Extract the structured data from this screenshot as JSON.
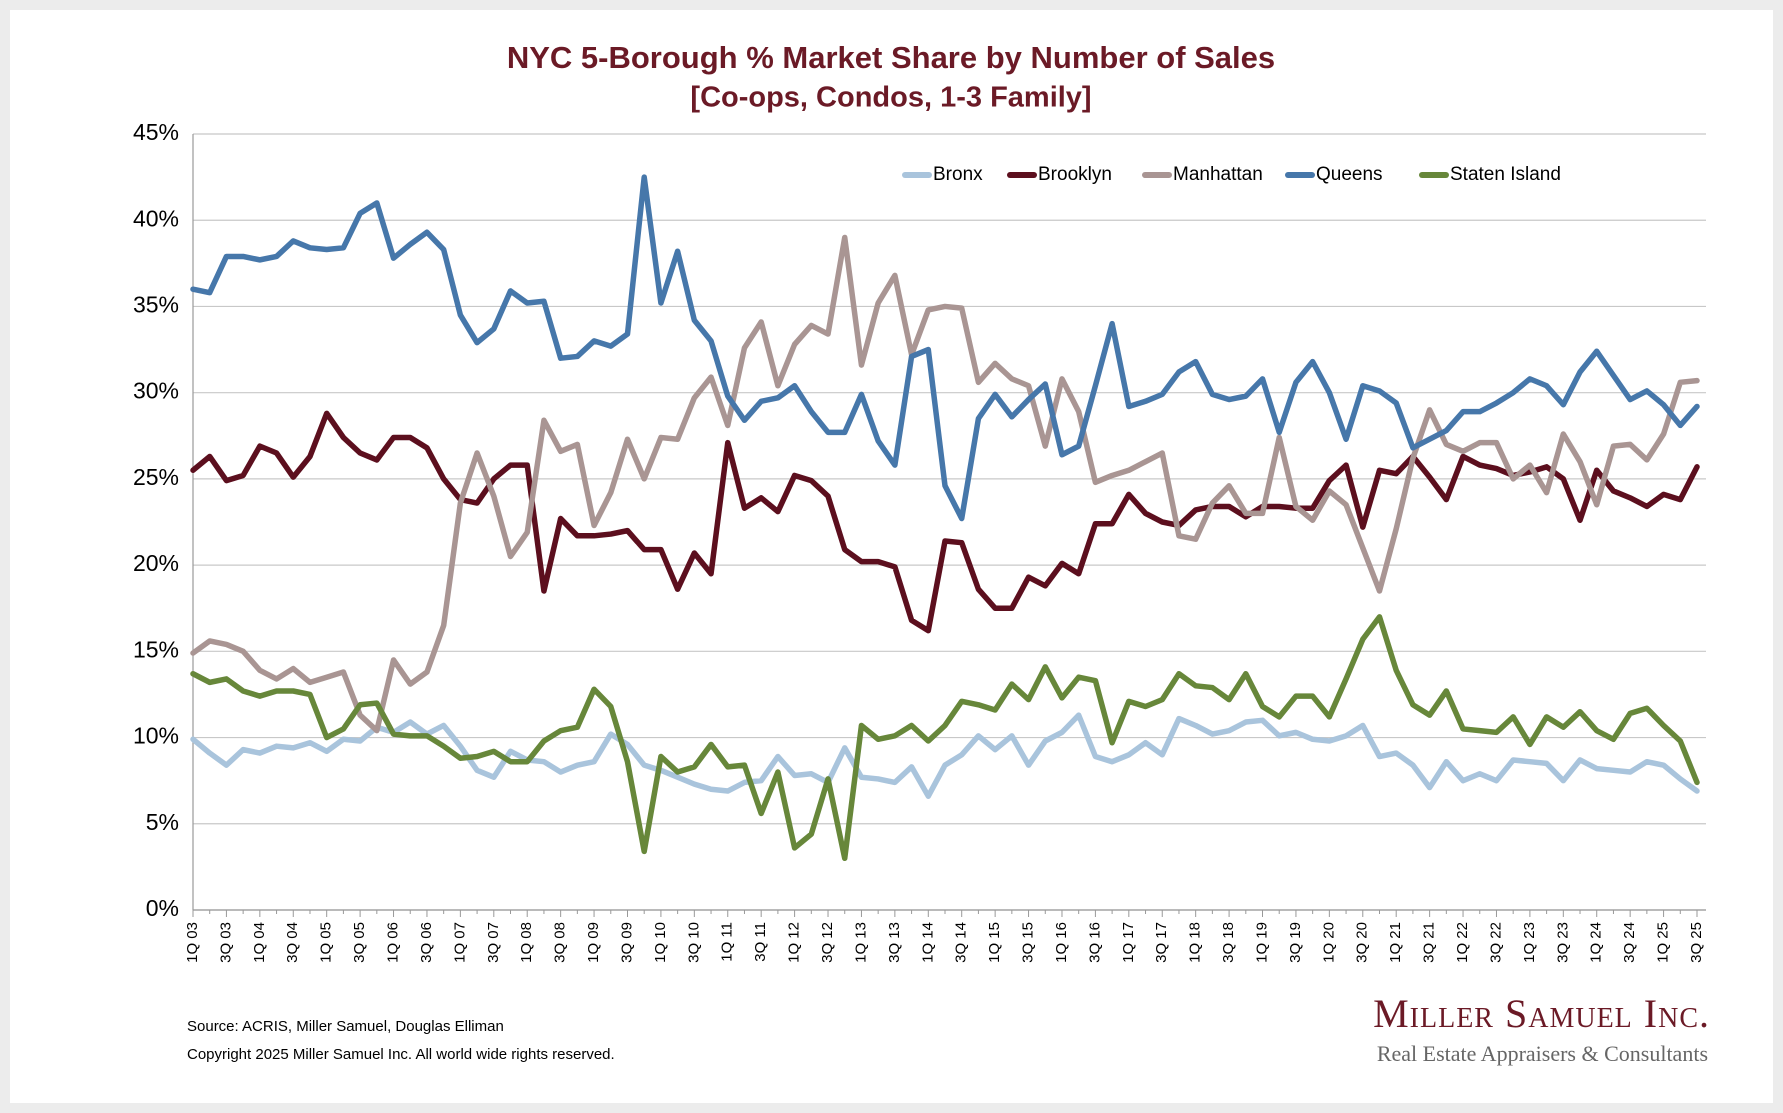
{
  "chart_data": {
    "type": "line",
    "title": "NYC 5-Borough % Market Share by Number of Sales",
    "subtitle": "[Co-ops, Condos, 1-3 Family]",
    "source": "Source: ACRIS, Miller Samuel, Douglas Elliman",
    "copyright": "Copyright 2025 Miller Samuel Inc.  All world wide rights reserved.",
    "logo": "Miller Samuel Inc.",
    "logo_tagline": "Real Estate Appraisers & Consultants",
    "categories": [
      "1Q 03",
      null,
      "3Q 03",
      null,
      "1Q 04",
      null,
      "3Q 04",
      null,
      "1Q 05",
      null,
      "3Q 05",
      null,
      "1Q 06",
      null,
      "3Q 06",
      null,
      "1Q 07",
      null,
      "3Q 07",
      null,
      "1Q 08",
      null,
      "3Q 08",
      null,
      "1Q 09",
      null,
      "3Q 09",
      null,
      "1Q 10",
      null,
      "3Q 10",
      null,
      "1Q 11",
      null,
      "3Q 11",
      null,
      "1Q 12",
      null,
      "3Q 12",
      null,
      "1Q 13",
      null,
      "3Q 13",
      null,
      "1Q 14",
      null,
      "3Q 14",
      null,
      "1Q 15",
      null,
      "3Q 15",
      null,
      "1Q 16",
      null,
      "3Q 16",
      null,
      "1Q 17",
      null,
      "3Q 17",
      null,
      "1Q 18",
      null,
      "3Q 18",
      null,
      "1Q 19",
      null,
      "3Q 19",
      null,
      "1Q 20",
      null,
      "3Q 20",
      null,
      "1Q 21",
      null,
      "3Q 21",
      null,
      "1Q 22",
      null,
      "3Q 22",
      null,
      "1Q 23",
      null,
      "3Q 23",
      null,
      "1Q 24",
      null,
      "3Q 24",
      null,
      "1Q 25",
      null,
      "3Q 25"
    ],
    "ylim": [
      0,
      45
    ],
    "yticks": [
      {
        "value": 0,
        "label": "0%"
      },
      {
        "value": 5,
        "label": "5%"
      },
      {
        "value": 10,
        "label": "10%"
      },
      {
        "value": 15,
        "label": "15%"
      },
      {
        "value": 20,
        "label": "20%"
      },
      {
        "value": 25,
        "label": "25%"
      },
      {
        "value": 30,
        "label": "30%"
      },
      {
        "value": 35,
        "label": "35%"
      },
      {
        "value": 40,
        "label": "40%"
      },
      {
        "value": 45,
        "label": "45%"
      }
    ],
    "grid": true,
    "legend": "top-right",
    "series": [
      {
        "name": "Bronx",
        "color": "#a9c4dc",
        "values": [
          9.9,
          9.1,
          8.4,
          9.3,
          9.1,
          9.5,
          9.4,
          9.7,
          9.2,
          9.9,
          9.8,
          10.6,
          10.3,
          10.9,
          10.2,
          10.7,
          9.5,
          8.1,
          7.7,
          9.2,
          8.7,
          8.6,
          8.0,
          8.4,
          8.6,
          10.2,
          9.6,
          8.4,
          8.1,
          7.7,
          7.3,
          7.0,
          6.9,
          7.4,
          7.5,
          8.9,
          7.8,
          7.9,
          7.4,
          9.4,
          7.7,
          7.6,
          7.4,
          8.3,
          6.6,
          8.4,
          9.0,
          10.1,
          9.3,
          10.1,
          8.4,
          9.8,
          10.3,
          11.3,
          8.9,
          8.6,
          9.0,
          9.7,
          9.0,
          11.1,
          10.7,
          10.2,
          10.4,
          10.9,
          11.0,
          10.1,
          10.3,
          9.9,
          9.8,
          10.1,
          10.7,
          8.9,
          9.1,
          8.4,
          7.1,
          8.6,
          7.5,
          7.9,
          7.5,
          8.7,
          8.6,
          8.5,
          7.5,
          8.7,
          8.2,
          8.1,
          8.0,
          8.6,
          8.4,
          7.6,
          6.9
        ]
      },
      {
        "name": "Brooklyn",
        "color": "#5c0f1e",
        "values": [
          25.5,
          26.3,
          24.9,
          25.2,
          26.9,
          26.5,
          25.1,
          26.3,
          28.8,
          27.4,
          26.5,
          26.1,
          27.4,
          27.4,
          26.8,
          25.0,
          23.8,
          23.6,
          25.0,
          25.8,
          25.8,
          18.5,
          22.7,
          21.7,
          21.7,
          21.8,
          22.0,
          20.9,
          20.9,
          18.6,
          20.7,
          19.5,
          27.1,
          23.3,
          23.9,
          23.1,
          25.2,
          24.9,
          24.0,
          20.9,
          20.2,
          20.2,
          19.9,
          16.8,
          16.2,
          21.4,
          21.3,
          18.6,
          17.5,
          17.5,
          19.3,
          18.8,
          20.1,
          19.5,
          22.4,
          22.4,
          24.1,
          23.0,
          22.5,
          22.3,
          23.2,
          23.4,
          23.4,
          22.8,
          23.4,
          23.4,
          23.3,
          23.3,
          24.9,
          25.8,
          22.2,
          25.5,
          25.3,
          26.3,
          25.1,
          23.8,
          26.3,
          25.8,
          25.6,
          25.2,
          25.4,
          25.7,
          25.0,
          22.6,
          25.5,
          24.3,
          23.9,
          23.4,
          24.1,
          23.8,
          25.7
        ]
      },
      {
        "name": "Manhattan",
        "color": "#a99593",
        "values": [
          14.9,
          15.6,
          15.4,
          15.0,
          13.9,
          13.4,
          14.0,
          13.2,
          13.5,
          13.8,
          11.3,
          10.4,
          14.5,
          13.1,
          13.8,
          16.5,
          23.6,
          26.5,
          24.0,
          20.5,
          21.9,
          28.4,
          26.6,
          27.0,
          22.3,
          24.2,
          27.3,
          25.0,
          27.4,
          27.3,
          29.7,
          30.9,
          28.1,
          32.6,
          34.1,
          30.4,
          32.8,
          33.9,
          33.4,
          39.0,
          31.6,
          35.2,
          36.8,
          32.2,
          34.8,
          35.0,
          34.9,
          30.6,
          31.7,
          30.8,
          30.4,
          26.9,
          30.8,
          28.9,
          24.8,
          25.2,
          25.5,
          26.0,
          26.5,
          21.7,
          21.5,
          23.6,
          24.6,
          23.0,
          23.0,
          27.4,
          23.4,
          22.6,
          24.3,
          23.5,
          21.0,
          18.5,
          22.1,
          26.2,
          29.0,
          27.0,
          26.6,
          27.1,
          27.1,
          25.0,
          25.8,
          24.2,
          27.6,
          26.0,
          23.5,
          26.9,
          27.0,
          26.1,
          27.6,
          30.6,
          30.7
        ]
      },
      {
        "name": "Queens",
        "color": "#4677aa",
        "values": [
          36.0,
          35.8,
          37.9,
          37.9,
          37.7,
          37.9,
          38.8,
          38.4,
          38.3,
          38.4,
          40.4,
          41.0,
          37.8,
          38.6,
          39.3,
          38.3,
          34.5,
          32.9,
          33.7,
          35.9,
          35.2,
          35.3,
          32.0,
          32.1,
          33.0,
          32.7,
          33.4,
          42.5,
          35.2,
          38.2,
          34.2,
          33.0,
          29.8,
          28.4,
          29.5,
          29.7,
          30.4,
          28.9,
          27.7,
          27.7,
          29.9,
          27.2,
          25.8,
          32.1,
          32.5,
          24.6,
          22.7,
          28.5,
          29.9,
          28.6,
          29.6,
          30.5,
          26.4,
          26.9,
          30.4,
          34.0,
          29.2,
          29.5,
          29.9,
          31.2,
          31.8,
          29.9,
          29.6,
          29.8,
          30.8,
          27.7,
          30.6,
          31.8,
          30.0,
          27.3,
          30.4,
          30.1,
          29.4,
          26.8,
          27.3,
          27.8,
          28.9,
          28.9,
          29.4,
          30.0,
          30.8,
          30.4,
          29.3,
          31.2,
          32.4,
          31.0,
          29.6,
          30.1,
          29.3,
          28.1,
          29.2
        ]
      },
      {
        "name": "Staten Island",
        "color": "#67873a",
        "values": [
          13.7,
          13.2,
          13.4,
          12.7,
          12.4,
          12.7,
          12.7,
          12.5,
          10.0,
          10.5,
          11.9,
          12.0,
          10.2,
          10.1,
          10.1,
          9.5,
          8.8,
          8.9,
          9.2,
          8.6,
          8.6,
          9.8,
          10.4,
          10.6,
          12.8,
          11.8,
          8.6,
          3.4,
          8.9,
          8.0,
          8.3,
          9.6,
          8.3,
          8.4,
          5.6,
          8.0,
          3.6,
          4.4,
          7.6,
          3.0,
          10.7,
          9.9,
          10.1,
          10.7,
          9.8,
          10.7,
          12.1,
          11.9,
          11.6,
          13.1,
          12.2,
          14.1,
          12.3,
          13.5,
          13.3,
          9.7,
          12.1,
          11.8,
          12.2,
          13.7,
          13.0,
          12.9,
          12.2,
          13.7,
          11.8,
          11.2,
          12.4,
          12.4,
          11.2,
          13.4,
          15.7,
          17.0,
          13.9,
          11.9,
          11.3,
          12.7,
          10.5,
          10.4,
          10.3,
          11.2,
          9.6,
          11.2,
          10.6,
          11.5,
          10.4,
          9.9,
          11.4,
          11.7,
          10.7,
          9.8,
          7.4
        ]
      }
    ]
  }
}
